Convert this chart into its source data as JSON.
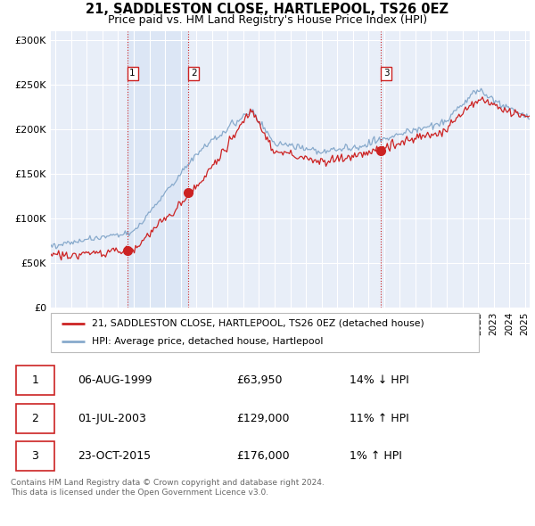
{
  "title": "21, SADDLESTON CLOSE, HARTLEPOOL, TS26 0EZ",
  "subtitle": "Price paid vs. HM Land Registry's House Price Index (HPI)",
  "legend_label_red": "21, SADDLESTON CLOSE, HARTLEPOOL, TS26 0EZ (detached house)",
  "legend_label_blue": "HPI: Average price, detached house, Hartlepool",
  "background_color": "#ffffff",
  "plot_bg_color": "#dce6f5",
  "plot_bg_color_light": "#e8eef8",
  "grid_color": "#ffffff",
  "red_color": "#cc2222",
  "blue_color": "#88aacc",
  "vline_color": "#cc2222",
  "shade_between_12": true,
  "sale_points": [
    {
      "date_num": 1999.58,
      "price": 63950,
      "label": "1"
    },
    {
      "date_num": 2003.5,
      "price": 129000,
      "label": "2"
    },
    {
      "date_num": 2015.81,
      "price": 176000,
      "label": "3"
    }
  ],
  "vline_dates": [
    1999.58,
    2003.5,
    2015.81
  ],
  "table_rows": [
    {
      "num": "1",
      "date": "06-AUG-1999",
      "price": "£63,950",
      "hpi": "14% ↓ HPI"
    },
    {
      "num": "2",
      "date": "01-JUL-2003",
      "price": "£129,000",
      "hpi": "11% ↑ HPI"
    },
    {
      "num": "3",
      "date": "23-OCT-2015",
      "price": "£176,000",
      "hpi": "1% ↑ HPI"
    }
  ],
  "footer": "Contains HM Land Registry data © Crown copyright and database right 2024.\nThis data is licensed under the Open Government Licence v3.0.",
  "ylim": [
    0,
    310000
  ],
  "xlim": [
    1994.7,
    2025.3
  ],
  "yticks": [
    0,
    50000,
    100000,
    150000,
    200000,
    250000,
    300000
  ],
  "ytick_labels": [
    "£0",
    "£50K",
    "£100K",
    "£150K",
    "£200K",
    "£250K",
    "£300K"
  ]
}
